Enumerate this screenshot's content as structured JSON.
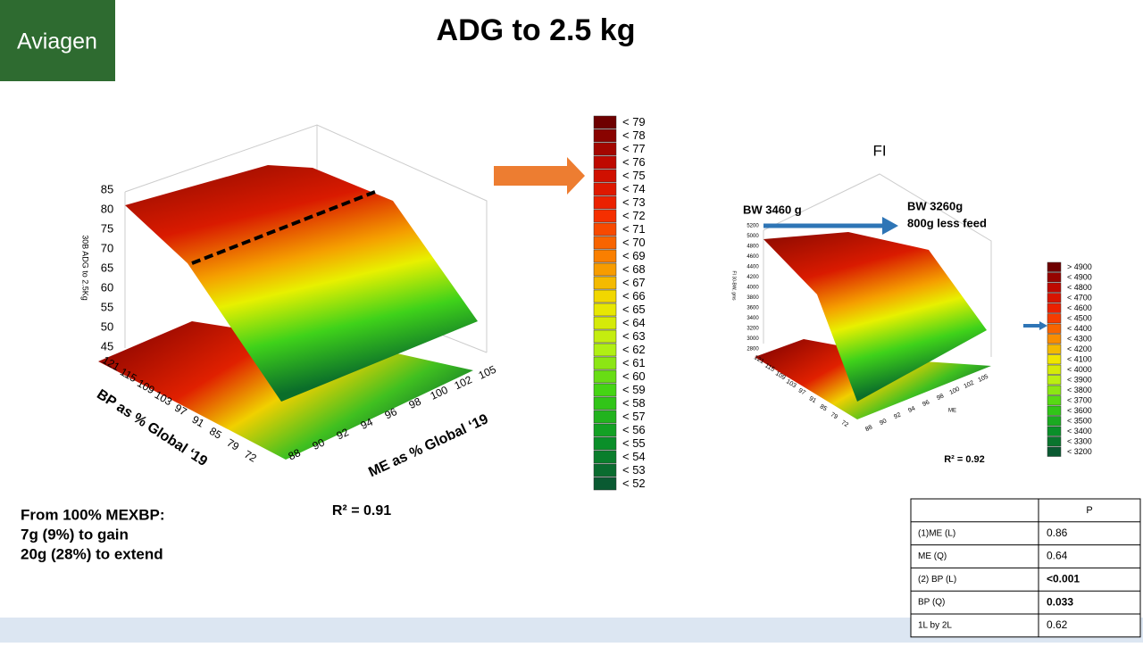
{
  "header": {
    "logo": "Aviagen",
    "title": "ADG to 2.5 kg"
  },
  "left_plot": {
    "z_label": "30B ADG to 2.5Kg",
    "z_ticks": [
      "85",
      "80",
      "75",
      "70",
      "65",
      "60",
      "55",
      "50",
      "45"
    ],
    "x_label": "BP as % Global ‘19",
    "x_ticks": [
      "121",
      "115",
      "109",
      "103",
      "97",
      "91",
      "85",
      "79",
      "72"
    ],
    "y_label": "ME as % Global ‘19",
    "y_ticks": [
      "88",
      "90",
      "92",
      "94",
      "96",
      "98",
      "100",
      "102",
      "105"
    ],
    "r2": "R² = 0.91",
    "legend": [
      "< 79",
      "< 78",
      "< 77",
      "< 76",
      "< 75",
      "< 74",
      "< 73",
      "< 72",
      "< 71",
      "< 70",
      "< 69",
      "< 68",
      "< 67",
      "< 66",
      "< 65",
      "< 64",
      "< 63",
      "< 62",
      "< 61",
      "< 60",
      "< 59",
      "< 58",
      "< 57",
      "< 56",
      "< 55",
      "< 54",
      "< 53",
      "< 52"
    ]
  },
  "right_plot": {
    "title": "FI",
    "annotation_left": "BW 3460 g",
    "annotation_right": [
      "BW 3260g",
      "800g less feed"
    ],
    "z_label": "FI 30-BW, gms",
    "z_ticks": [
      "5200",
      "5000",
      "4800",
      "4600",
      "4400",
      "4200",
      "4000",
      "3800",
      "3600",
      "3400",
      "3200",
      "3000",
      "2800"
    ],
    "x_ticks": [
      "121",
      "115",
      "109",
      "103",
      "97",
      "91",
      "85",
      "79",
      "72"
    ],
    "y_label": "ME",
    "y_ticks": [
      "88",
      "90",
      "92",
      "94",
      "96",
      "98",
      "100",
      "102",
      "105"
    ],
    "r2": "R² = 0.92",
    "legend": [
      "> 4900",
      "< 4900",
      "< 4800",
      "< 4700",
      "< 4600",
      "< 4500",
      "< 4400",
      "< 4300",
      "< 4200",
      "< 4100",
      "< 4000",
      "< 3900",
      "< 3800",
      "< 3700",
      "< 3600",
      "< 3500",
      "< 3400",
      "< 3300",
      "< 3200"
    ]
  },
  "note": [
    "From 100% MEXBP:",
    "7g (9%) to gain",
    "20g (28%) to extend"
  ],
  "table": {
    "column_header": "P",
    "rows": [
      [
        "(1)ME (L)",
        "0.86"
      ],
      [
        "ME (Q)",
        "0.64"
      ],
      [
        "(2) BP (L)",
        "<0.001"
      ],
      [
        "BP (Q)",
        "0.033"
      ],
      [
        "1L by 2L",
        "0.62"
      ]
    ]
  }
}
